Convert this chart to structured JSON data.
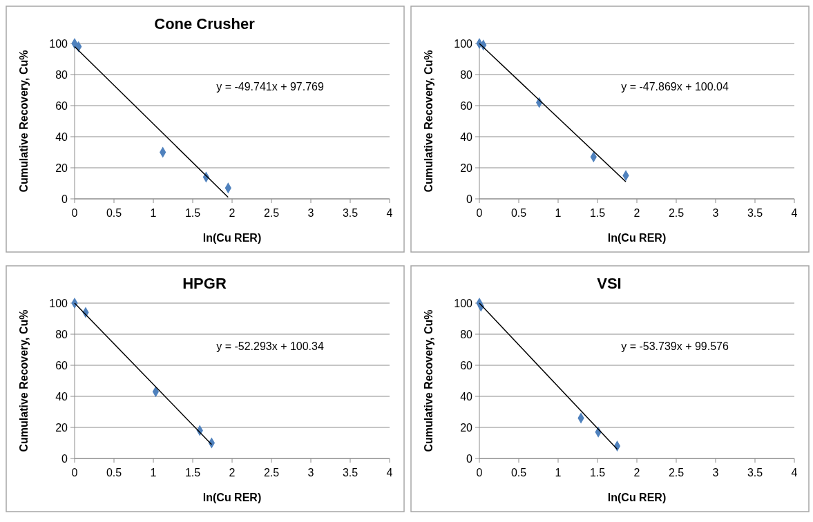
{
  "chart_data": [
    {
      "type": "scatter",
      "title": "Cone Crusher",
      "xlabel": "ln(Cu RER)",
      "ylabel": "Cumulative Recovery, Cu%",
      "annotations": [
        "y = -49.741x + 97.769"
      ],
      "xlim": [
        0,
        4
      ],
      "xticks": [
        0,
        0.5,
        1,
        1.5,
        2,
        2.5,
        3,
        3.5,
        4
      ],
      "ylim": [
        0,
        100
      ],
      "yticks": [
        0,
        20,
        40,
        60,
        80,
        100
      ],
      "grid": "y",
      "marker": "diamond",
      "series": [
        {
          "color": "#4f81bd",
          "x": [
            0,
            0.05,
            1.12,
            1.67,
            1.95
          ],
          "values": [
            100,
            98,
            30,
            14,
            7
          ]
        },
        {
          "type": "line",
          "color": "#000000",
          "marker": "none",
          "x": [
            0,
            1.95
          ],
          "values": [
            98,
            1
          ]
        }
      ]
    },
    {
      "type": "scatter",
      "xlabel": "ln(Cu RER)",
      "ylabel": "Cumulative Recovery, Cu%",
      "annotations": [
        "y = -47.869x + 100.04"
      ],
      "xlim": [
        0,
        4
      ],
      "xticks": [
        0,
        0.5,
        1,
        1.5,
        2,
        2.5,
        3,
        3.5,
        4
      ],
      "ylim": [
        0,
        100
      ],
      "yticks": [
        0,
        20,
        40,
        60,
        80,
        100
      ],
      "grid": "y",
      "marker": "diamond",
      "series": [
        {
          "color": "#4f81bd",
          "x": [
            0,
            0.05,
            0.76,
            1.45,
            1.86
          ],
          "values": [
            100,
            99,
            62,
            27,
            15
          ]
        },
        {
          "type": "line",
          "color": "#000000",
          "marker": "none",
          "x": [
            0,
            1.86
          ],
          "values": [
            100,
            11
          ]
        }
      ]
    },
    {
      "type": "scatter",
      "title": "HPGR",
      "xlabel": "ln(Cu RER)",
      "ylabel": "Cumulative Recovery, Cu%",
      "annotations": [
        "y = -52.293x + 100.34"
      ],
      "xlim": [
        0,
        4
      ],
      "xticks": [
        0,
        0.5,
        1,
        1.5,
        2,
        2.5,
        3,
        3.5,
        4
      ],
      "ylim": [
        0,
        100
      ],
      "yticks": [
        0,
        20,
        40,
        60,
        80,
        100
      ],
      "grid": "y",
      "marker": "diamond",
      "series": [
        {
          "color": "#4f81bd",
          "x": [
            0,
            0.14,
            1.03,
            1.59,
            1.74
          ],
          "values": [
            100,
            94,
            43,
            18,
            10
          ]
        },
        {
          "type": "line",
          "color": "#000000",
          "marker": "none",
          "x": [
            0,
            1.74
          ],
          "values": [
            100,
            9
          ]
        }
      ]
    },
    {
      "type": "scatter",
      "title": "VSI",
      "xlabel": "ln(Cu RER)",
      "ylabel": "Cumulative Recovery, Cu%",
      "annotations": [
        "y = -53.739x + 99.576"
      ],
      "xlim": [
        0,
        4
      ],
      "xticks": [
        0,
        0.5,
        1,
        1.5,
        2,
        2.5,
        3,
        3.5,
        4
      ],
      "ylim": [
        0,
        100
      ],
      "yticks": [
        0,
        20,
        40,
        60,
        80,
        100
      ],
      "grid": "y",
      "marker": "diamond",
      "series": [
        {
          "color": "#4f81bd",
          "x": [
            0,
            0.02,
            1.29,
            1.51,
            1.75
          ],
          "values": [
            100,
            98,
            26,
            17,
            8
          ]
        },
        {
          "type": "line",
          "color": "#000000",
          "marker": "none",
          "x": [
            0,
            1.75
          ],
          "values": [
            100,
            6
          ]
        }
      ]
    }
  ]
}
